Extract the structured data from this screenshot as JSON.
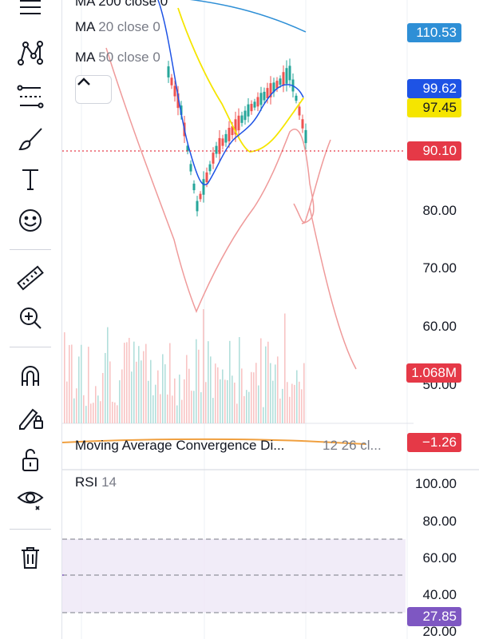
{
  "toolbar": {
    "tools": [
      {
        "name": "lines-icon"
      },
      {
        "name": "pattern-icon"
      },
      {
        "name": "fib-retracement-icon"
      },
      {
        "name": "brush-icon"
      },
      {
        "name": "text-icon"
      },
      {
        "name": "emoji-icon"
      },
      {
        "name": "ruler-icon"
      },
      {
        "name": "zoom-in-icon"
      },
      {
        "name": "magnet-icon"
      },
      {
        "name": "lock-drawing-icon"
      },
      {
        "name": "unlock-icon"
      },
      {
        "name": "eye-icon"
      },
      {
        "name": "trash-icon"
      }
    ]
  },
  "legend": {
    "ma200": "MA 200 close 0",
    "ma20_name": "MA",
    "ma20_rest": "20 close 0",
    "ma50_name": "MA",
    "ma50_rest": "50 close 0"
  },
  "price_axis": {
    "labels": [
      "80.00",
      "70.00",
      "60.00",
      "50.00"
    ],
    "tags": {
      "ma200": "110.53",
      "ma20": "99.62",
      "ma50": "97.45",
      "last": "90.10",
      "volume": "1.068M"
    }
  },
  "macd": {
    "title": "Moving Average Convergence Di...",
    "params": "12 26 cl...",
    "value": "−1.26"
  },
  "rsi": {
    "title": "RSI",
    "period": "14",
    "labels": [
      "100.00",
      "80.00",
      "60.00",
      "40.00",
      "20.00"
    ],
    "value": "27.85"
  },
  "colors": {
    "ma200": "#2e8fd6",
    "ma20": "#1e53e5",
    "ma50": "#f5e500",
    "last": "#e53947",
    "rsi": "#7e57c2",
    "bull": "#26a69a",
    "bear": "#ef5350"
  }
}
